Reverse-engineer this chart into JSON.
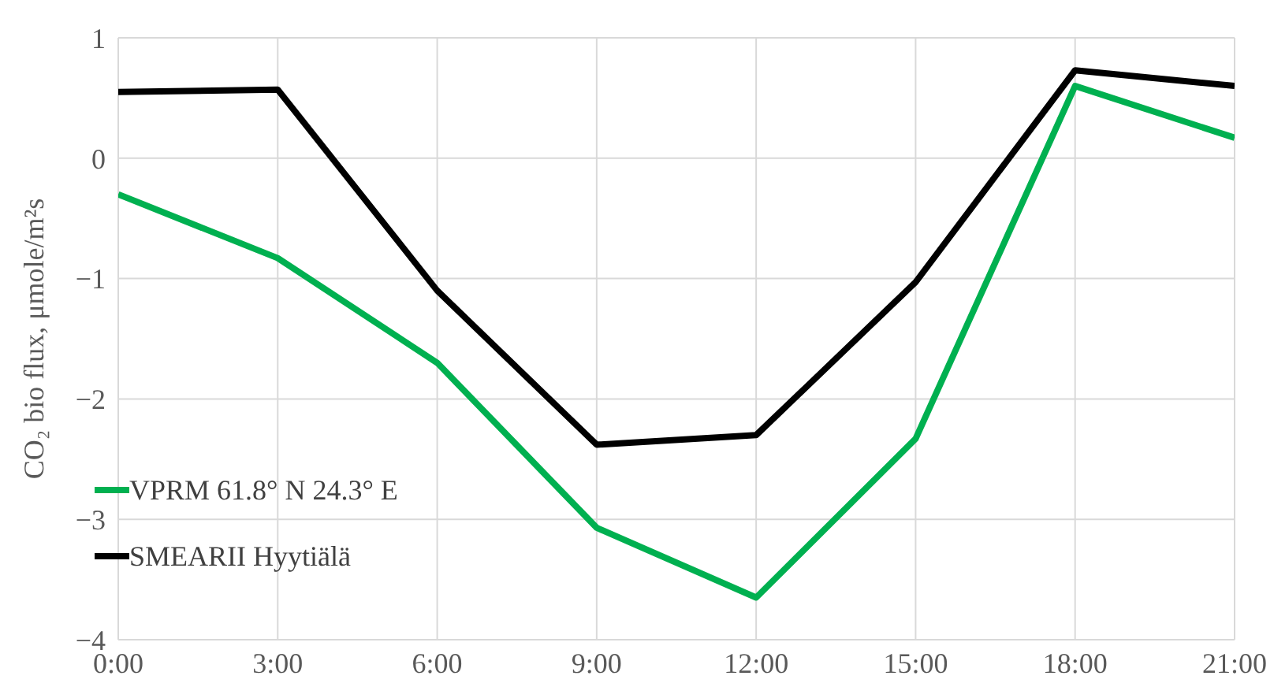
{
  "chart_data": {
    "type": "line",
    "ylabel": "CO₂ bio flux, μmole/m²s",
    "x": [
      0,
      3,
      6,
      9,
      12,
      15,
      18,
      21
    ],
    "xlim": [
      0,
      21
    ],
    "xticks": [
      {
        "value": 0,
        "label": "0:00"
      },
      {
        "value": 3,
        "label": "3:00"
      },
      {
        "value": 6,
        "label": "6:00"
      },
      {
        "value": 9,
        "label": "9:00"
      },
      {
        "value": 12,
        "label": "12:00"
      },
      {
        "value": 15,
        "label": "15:00"
      },
      {
        "value": 18,
        "label": "18:00"
      },
      {
        "value": 21,
        "label": "21:00"
      }
    ],
    "ylim": [
      -4,
      1
    ],
    "yticks": [
      -4,
      -3,
      -2,
      -1,
      0,
      1
    ],
    "series": [
      {
        "name": "VPRM 61.8° N 24.3° E",
        "color": "#00b050",
        "values": [
          -0.3,
          -0.83,
          -1.7,
          -3.07,
          -3.65,
          -2.33,
          0.6,
          0.17
        ]
      },
      {
        "name": "SMEARII Hyytiälä",
        "color": "#000000",
        "values": [
          0.55,
          0.57,
          -1.1,
          -2.38,
          -2.3,
          -1.03,
          0.73,
          0.6
        ]
      }
    ],
    "grid": true,
    "legend": "bottom left",
    "marker": "none",
    "line_style": "solid"
  }
}
